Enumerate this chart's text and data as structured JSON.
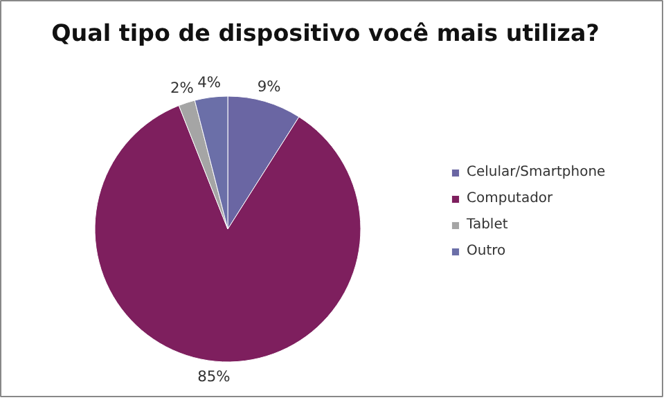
{
  "chart_data": {
    "type": "pie",
    "title": "Qual tipo de dispositivo você mais utiliza?",
    "categories": [
      "Celular/Smartphone",
      "Computador",
      "Tablet",
      "Outro"
    ],
    "values": [
      9,
      85,
      2,
      4
    ],
    "colors": [
      "#6a66a3",
      "#7e1f5e",
      "#a5a5a5",
      "#6b6fa8"
    ],
    "value_labels": [
      "9%",
      "85%",
      "2%",
      "4%"
    ],
    "legend": "right"
  }
}
